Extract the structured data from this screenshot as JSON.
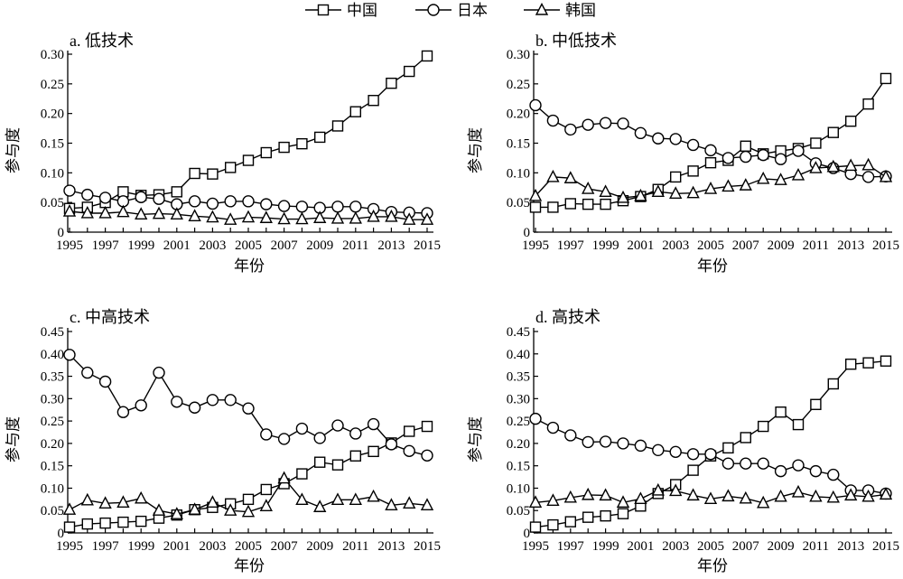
{
  "legend": [
    {
      "name": "中国",
      "marker": "square"
    },
    {
      "name": "日本",
      "marker": "circle"
    },
    {
      "name": "韩国",
      "marker": "triangle"
    }
  ],
  "chart_data": [
    {
      "type": "line",
      "title": "a. 低技术",
      "xlabel": "年份",
      "ylabel": "参与度",
      "ylim": [
        0,
        0.3
      ],
      "yticks": [
        "0",
        "0.05",
        "0.10",
        "0.15",
        "0.20",
        "0.25",
        "0.30"
      ],
      "xticks": [
        "1995",
        "1997",
        "1999",
        "2001",
        "2003",
        "2005",
        "2007",
        "2009",
        "2011",
        "2013",
        "2015"
      ],
      "x": [
        1995,
        1996,
        1997,
        1998,
        1999,
        2000,
        2001,
        2002,
        2003,
        2004,
        2005,
        2006,
        2007,
        2008,
        2009,
        2010,
        2011,
        2012,
        2013,
        2014,
        2015
      ],
      "series": [
        {
          "name": "中国",
          "marker": "square",
          "values": [
            0.04,
            0.042,
            0.05,
            0.068,
            0.062,
            0.063,
            0.068,
            0.099,
            0.098,
            0.109,
            0.121,
            0.134,
            0.143,
            0.149,
            0.16,
            0.179,
            0.203,
            0.222,
            0.251,
            0.271,
            0.297
          ]
        },
        {
          "name": "日本",
          "marker": "circle",
          "values": [
            0.07,
            0.063,
            0.058,
            0.052,
            0.059,
            0.056,
            0.047,
            0.052,
            0.048,
            0.052,
            0.052,
            0.047,
            0.044,
            0.043,
            0.041,
            0.043,
            0.043,
            0.039,
            0.034,
            0.033,
            0.032
          ]
        },
        {
          "name": "韩国",
          "marker": "triangle",
          "values": [
            0.035,
            0.032,
            0.032,
            0.034,
            0.03,
            0.031,
            0.03,
            0.027,
            0.025,
            0.021,
            0.025,
            0.024,
            0.022,
            0.022,
            0.024,
            0.023,
            0.023,
            0.026,
            0.026,
            0.021,
            0.021
          ]
        }
      ]
    },
    {
      "type": "line",
      "title": "b. 中低技术",
      "xlabel": "年份",
      "ylabel": "参与度",
      "ylim": [
        0,
        0.3
      ],
      "yticks": [
        "0",
        "0.05",
        "0.10",
        "0.15",
        "0.20",
        "0.25",
        "0.30"
      ],
      "xticks": [
        "1995",
        "1997",
        "1999",
        "2001",
        "2003",
        "2005",
        "2007",
        "2009",
        "2011",
        "2013",
        "2015"
      ],
      "x": [
        1995,
        1996,
        1997,
        1998,
        1999,
        2000,
        2001,
        2002,
        2003,
        2004,
        2005,
        2006,
        2007,
        2008,
        2009,
        2010,
        2011,
        2012,
        2013,
        2014,
        2015
      ],
      "series": [
        {
          "name": "中国",
          "marker": "square",
          "values": [
            0.042,
            0.042,
            0.048,
            0.047,
            0.047,
            0.053,
            0.06,
            0.072,
            0.093,
            0.103,
            0.117,
            0.121,
            0.145,
            0.132,
            0.137,
            0.141,
            0.15,
            0.168,
            0.187,
            0.216,
            0.259
          ]
        },
        {
          "name": "日本",
          "marker": "circle",
          "values": [
            0.214,
            0.188,
            0.173,
            0.181,
            0.184,
            0.183,
            0.167,
            0.158,
            0.157,
            0.147,
            0.138,
            0.125,
            0.127,
            0.13,
            0.123,
            0.137,
            0.116,
            0.108,
            0.098,
            0.093,
            0.094
          ]
        },
        {
          "name": "韩国",
          "marker": "triangle",
          "values": [
            0.061,
            0.093,
            0.091,
            0.073,
            0.068,
            0.058,
            0.061,
            0.068,
            0.065,
            0.066,
            0.073,
            0.077,
            0.079,
            0.09,
            0.088,
            0.096,
            0.108,
            0.11,
            0.112,
            0.113,
            0.093
          ]
        }
      ]
    },
    {
      "type": "line",
      "title": "c. 中高技术",
      "xlabel": "年份",
      "ylabel": "参与度",
      "ylim": [
        0,
        0.45
      ],
      "yticks": [
        "0",
        "0.05",
        "0.10",
        "0.15",
        "0.20",
        "0.25",
        "0.30",
        "0.35",
        "0.40",
        "0.45"
      ],
      "xticks": [
        "1995",
        "1997",
        "1999",
        "2001",
        "2003",
        "2005",
        "2007",
        "2009",
        "2011",
        "2013",
        "2015"
      ],
      "x": [
        1995,
        1996,
        1997,
        1998,
        1999,
        2000,
        2001,
        2002,
        2003,
        2004,
        2005,
        2006,
        2007,
        2008,
        2009,
        2010,
        2011,
        2012,
        2013,
        2014,
        2015
      ],
      "series": [
        {
          "name": "中国",
          "marker": "square",
          "values": [
            0.013,
            0.02,
            0.022,
            0.024,
            0.026,
            0.033,
            0.04,
            0.052,
            0.057,
            0.065,
            0.075,
            0.097,
            0.11,
            0.132,
            0.158,
            0.152,
            0.172,
            0.182,
            0.201,
            0.227,
            0.238
          ]
        },
        {
          "name": "日本",
          "marker": "circle",
          "values": [
            0.398,
            0.358,
            0.338,
            0.27,
            0.285,
            0.358,
            0.293,
            0.28,
            0.297,
            0.297,
            0.278,
            0.22,
            0.21,
            0.233,
            0.212,
            0.24,
            0.222,
            0.243,
            0.198,
            0.183,
            0.173
          ]
        },
        {
          "name": "韩国",
          "marker": "triangle",
          "values": [
            0.052,
            0.073,
            0.066,
            0.068,
            0.077,
            0.05,
            0.042,
            0.052,
            0.068,
            0.05,
            0.047,
            0.06,
            0.122,
            0.074,
            0.058,
            0.074,
            0.074,
            0.081,
            0.062,
            0.066,
            0.062
          ]
        }
      ]
    },
    {
      "type": "line",
      "title": "d. 高技术",
      "xlabel": "年份",
      "ylabel": "参与度",
      "ylim": [
        0,
        0.45
      ],
      "yticks": [
        "0",
        "0.05",
        "0.10",
        "0.15",
        "0.20",
        "0.25",
        "0.30",
        "0.35",
        "0.40",
        "0.45"
      ],
      "xticks": [
        "1995",
        "1997",
        "1999",
        "2001",
        "2003",
        "2005",
        "2007",
        "2009",
        "2011",
        "2013",
        "2015"
      ],
      "x": [
        1995,
        1996,
        1997,
        1998,
        1999,
        2000,
        2001,
        2002,
        2003,
        2004,
        2005,
        2006,
        2007,
        2008,
        2009,
        2010,
        2011,
        2012,
        2013,
        2014,
        2015
      ],
      "series": [
        {
          "name": "中国",
          "marker": "square",
          "values": [
            0.013,
            0.018,
            0.025,
            0.035,
            0.038,
            0.043,
            0.06,
            0.088,
            0.108,
            0.14,
            0.172,
            0.19,
            0.213,
            0.238,
            0.27,
            0.242,
            0.287,
            0.333,
            0.377,
            0.38,
            0.384
          ]
        },
        {
          "name": "日本",
          "marker": "circle",
          "values": [
            0.255,
            0.235,
            0.218,
            0.203,
            0.204,
            0.2,
            0.195,
            0.185,
            0.181,
            0.176,
            0.176,
            0.155,
            0.155,
            0.155,
            0.138,
            0.151,
            0.138,
            0.13,
            0.095,
            0.095,
            0.088
          ]
        },
        {
          "name": "韩国",
          "marker": "triangle",
          "values": [
            0.068,
            0.072,
            0.079,
            0.085,
            0.084,
            0.068,
            0.076,
            0.095,
            0.094,
            0.084,
            0.076,
            0.082,
            0.077,
            0.067,
            0.081,
            0.091,
            0.081,
            0.079,
            0.084,
            0.081,
            0.086
          ]
        }
      ]
    }
  ]
}
